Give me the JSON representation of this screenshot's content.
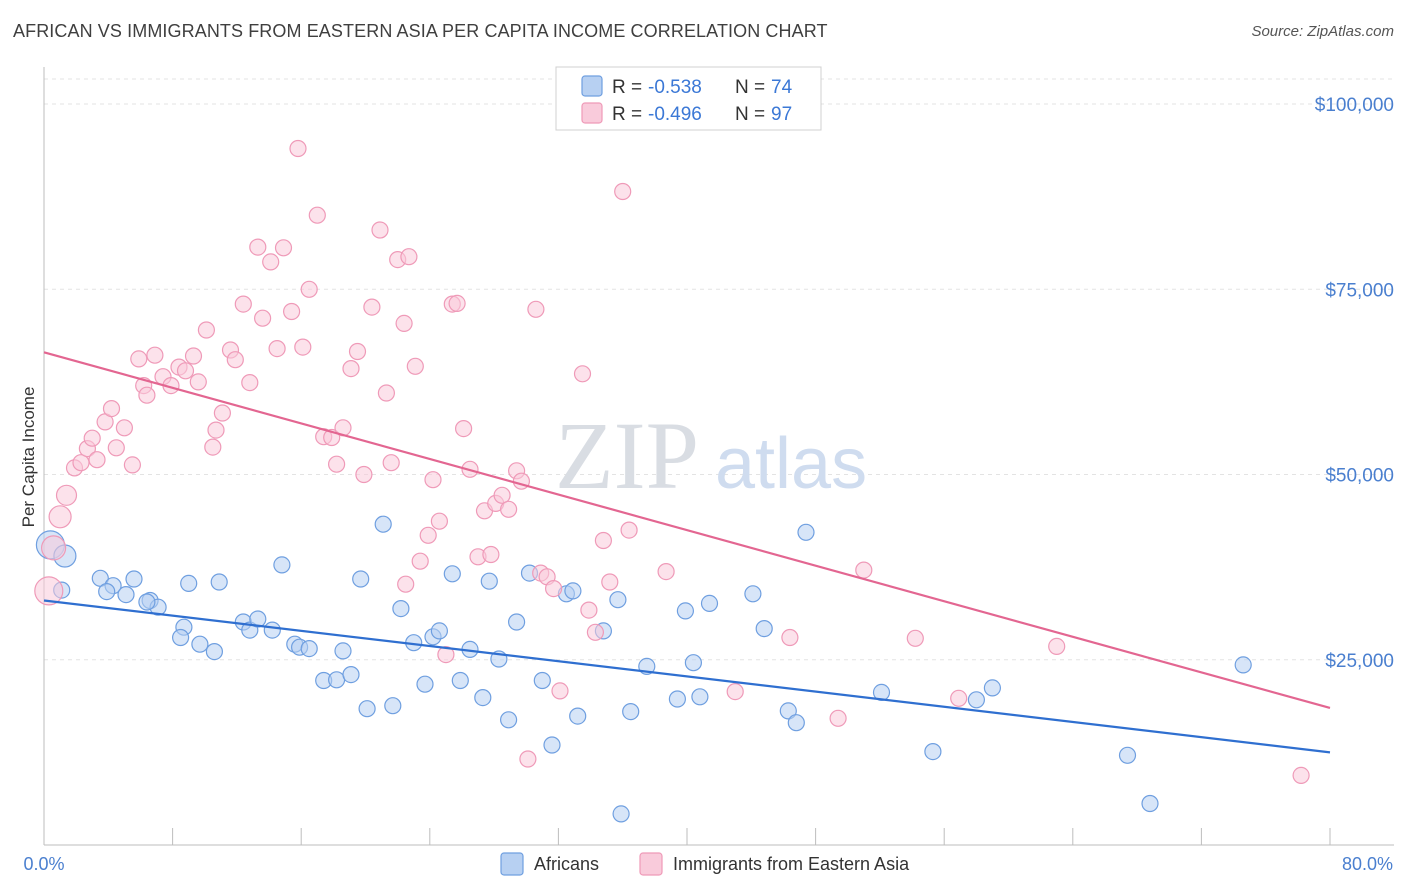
{
  "chart_data": {
    "type": "scatter",
    "title": "AFRICAN VS IMMIGRANTS FROM EASTERN ASIA PER CAPITA INCOME CORRELATION CHART",
    "source": "Source: ZipAtlas.com",
    "ylabel": "Per Capita Income",
    "xlim": [
      0,
      80
    ],
    "ylim": [
      0,
      105000
    ],
    "x_tick_labels": [
      "0.0%",
      "80.0%"
    ],
    "y_ticks": [
      {
        "value": 25000,
        "label": "$25,000"
      },
      {
        "value": 50000,
        "label": "$50,000"
      },
      {
        "value": 75000,
        "label": "$75,000"
      },
      {
        "value": 100000,
        "label": "$100,000"
      }
    ],
    "grid": true,
    "legend": {
      "placement": "top-center",
      "rows": [
        {
          "r_label": "R = ",
          "r_value": "-0.538",
          "n_label": "N = ",
          "n_value": "74"
        },
        {
          "r_label": "R = ",
          "r_value": "-0.496",
          "n_label": "N = ",
          "n_value": "97"
        }
      ]
    },
    "series": [
      {
        "name": "Africans",
        "color": "#6f9fe0",
        "fill": "#b7d0f2",
        "line_color": "#2f6fd0",
        "trend": {
          "x": [
            0,
            80
          ],
          "y": [
            33000,
            12500
          ]
        },
        "points": [
          [
            0.4,
            40500
          ],
          [
            1.3,
            39000
          ],
          [
            3.5,
            36000
          ],
          [
            4.3,
            35000
          ],
          [
            3.9,
            34200
          ],
          [
            5.6,
            35900
          ],
          [
            6.6,
            33000
          ],
          [
            5.1,
            33800
          ],
          [
            7.1,
            32100
          ],
          [
            6.4,
            32800
          ],
          [
            8.7,
            29400
          ],
          [
            8.5,
            28000
          ],
          [
            9.7,
            27100
          ],
          [
            10.6,
            26100
          ],
          [
            9.0,
            35300
          ],
          [
            10.9,
            35500
          ],
          [
            12.4,
            30100
          ],
          [
            12.8,
            29000
          ],
          [
            13.3,
            30500
          ],
          [
            14.8,
            37800
          ],
          [
            14.2,
            29000
          ],
          [
            15.6,
            27100
          ],
          [
            15.9,
            26700
          ],
          [
            16.5,
            26500
          ],
          [
            17.4,
            22200
          ],
          [
            18.2,
            22300
          ],
          [
            18.6,
            26200
          ],
          [
            19.1,
            23000
          ],
          [
            19.7,
            35900
          ],
          [
            20.1,
            18400
          ],
          [
            21.1,
            43300
          ],
          [
            21.7,
            18800
          ],
          [
            22.2,
            31900
          ],
          [
            23.0,
            27300
          ],
          [
            23.7,
            21700
          ],
          [
            24.2,
            28100
          ],
          [
            24.6,
            28900
          ],
          [
            25.4,
            36600
          ],
          [
            25.9,
            22200
          ],
          [
            26.5,
            26400
          ],
          [
            27.3,
            19900
          ],
          [
            27.7,
            35600
          ],
          [
            28.3,
            25100
          ],
          [
            28.9,
            16900
          ],
          [
            29.4,
            30100
          ],
          [
            30.2,
            36700
          ],
          [
            31.0,
            22200
          ],
          [
            31.6,
            13500
          ],
          [
            32.5,
            33900
          ],
          [
            32.9,
            34300
          ],
          [
            33.2,
            17400
          ],
          [
            34.8,
            28900
          ],
          [
            35.7,
            33100
          ],
          [
            35.9,
            4200
          ],
          [
            36.5,
            18000
          ],
          [
            37.5,
            24100
          ],
          [
            39.4,
            19700
          ],
          [
            39.9,
            31600
          ],
          [
            40.4,
            24600
          ],
          [
            40.8,
            20000
          ],
          [
            41.4,
            32600
          ],
          [
            44.1,
            33900
          ],
          [
            44.8,
            29200
          ],
          [
            46.3,
            18100
          ],
          [
            46.8,
            16500
          ],
          [
            47.4,
            42200
          ],
          [
            52.1,
            20600
          ],
          [
            55.3,
            12600
          ],
          [
            58.0,
            19600
          ],
          [
            59.0,
            21200
          ],
          [
            67.4,
            12100
          ],
          [
            68.8,
            5600
          ],
          [
            74.6,
            24300
          ],
          [
            1.1,
            34400
          ]
        ]
      },
      {
        "name": "Immigrants from Eastern Asia",
        "color": "#ef9ab8",
        "fill": "#f9cbdb",
        "line_color": "#e36691",
        "trend": {
          "x": [
            0,
            80
          ],
          "y": [
            66500,
            18500
          ]
        },
        "points": [
          [
            0.3,
            34300
          ],
          [
            0.6,
            40100
          ],
          [
            1.0,
            44300
          ],
          [
            1.4,
            47200
          ],
          [
            1.9,
            50900
          ],
          [
            2.3,
            51600
          ],
          [
            2.7,
            53500
          ],
          [
            3.0,
            54900
          ],
          [
            3.3,
            52000
          ],
          [
            3.8,
            57100
          ],
          [
            4.2,
            58900
          ],
          [
            4.5,
            53600
          ],
          [
            5.0,
            56300
          ],
          [
            5.5,
            51300
          ],
          [
            5.9,
            65600
          ],
          [
            6.2,
            62000
          ],
          [
            6.4,
            60700
          ],
          [
            6.9,
            66100
          ],
          [
            7.4,
            63200
          ],
          [
            7.9,
            62000
          ],
          [
            8.4,
            64500
          ],
          [
            8.8,
            64000
          ],
          [
            9.3,
            66000
          ],
          [
            9.6,
            62500
          ],
          [
            10.1,
            69500
          ],
          [
            10.5,
            53700
          ],
          [
            10.7,
            56000
          ],
          [
            11.1,
            58300
          ],
          [
            11.6,
            66800
          ],
          [
            11.9,
            65500
          ],
          [
            12.4,
            73000
          ],
          [
            12.8,
            62400
          ],
          [
            13.3,
            80700
          ],
          [
            13.6,
            71100
          ],
          [
            14.1,
            78700
          ],
          [
            14.5,
            67000
          ],
          [
            14.9,
            80600
          ],
          [
            15.4,
            72000
          ],
          [
            15.8,
            94000
          ],
          [
            16.1,
            67200
          ],
          [
            16.5,
            75000
          ],
          [
            17.0,
            85000
          ],
          [
            17.4,
            55100
          ],
          [
            17.9,
            55000
          ],
          [
            18.2,
            51400
          ],
          [
            18.6,
            56300
          ],
          [
            19.1,
            64300
          ],
          [
            19.5,
            66600
          ],
          [
            19.9,
            50000
          ],
          [
            20.4,
            72600
          ],
          [
            20.9,
            83000
          ],
          [
            21.3,
            61000
          ],
          [
            21.6,
            51600
          ],
          [
            22.0,
            79000
          ],
          [
            22.4,
            70400
          ],
          [
            22.7,
            79400
          ],
          [
            23.1,
            64600
          ],
          [
            23.4,
            38300
          ],
          [
            23.9,
            41800
          ],
          [
            24.2,
            49300
          ],
          [
            24.6,
            43700
          ],
          [
            25.0,
            25700
          ],
          [
            25.4,
            73000
          ],
          [
            25.7,
            73100
          ],
          [
            26.1,
            56200
          ],
          [
            26.5,
            50700
          ],
          [
            27.0,
            38900
          ],
          [
            27.4,
            45100
          ],
          [
            27.8,
            39200
          ],
          [
            28.1,
            46100
          ],
          [
            28.5,
            47200
          ],
          [
            28.9,
            45300
          ],
          [
            29.4,
            50500
          ],
          [
            29.7,
            49100
          ],
          [
            30.1,
            11600
          ],
          [
            30.6,
            72300
          ],
          [
            30.9,
            36700
          ],
          [
            31.3,
            36200
          ],
          [
            31.7,
            34600
          ],
          [
            32.1,
            20800
          ],
          [
            33.5,
            63600
          ],
          [
            33.9,
            31700
          ],
          [
            34.3,
            28700
          ],
          [
            34.8,
            41100
          ],
          [
            35.2,
            35500
          ],
          [
            36.0,
            88200
          ],
          [
            36.4,
            42500
          ],
          [
            38.7,
            36900
          ],
          [
            43.0,
            20700
          ],
          [
            46.4,
            28000
          ],
          [
            49.4,
            17100
          ],
          [
            51.0,
            37100
          ],
          [
            54.2,
            27900
          ],
          [
            56.9,
            19800
          ],
          [
            63.0,
            26800
          ],
          [
            78.2,
            9400
          ],
          [
            22.5,
            35200
          ]
        ]
      }
    ],
    "watermark": {
      "zip": "ZIP",
      "atlas": "atlas"
    }
  }
}
